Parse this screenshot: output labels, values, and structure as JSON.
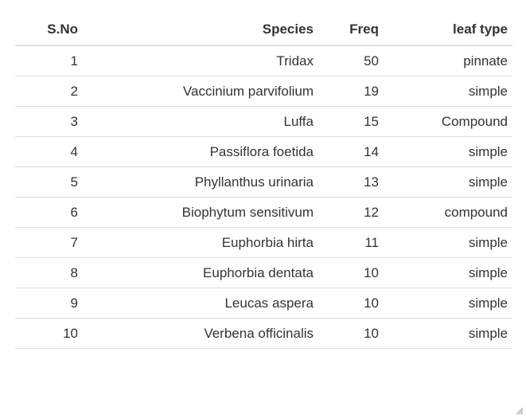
{
  "table": {
    "headers": [
      "S.No",
      "Species",
      "Freq",
      "leaf type"
    ],
    "rows": [
      [
        "1",
        "Tridax",
        "50",
        "pinnate"
      ],
      [
        "2",
        "Vaccinium parvifolium",
        "19",
        "simple"
      ],
      [
        "3",
        "Luffa",
        "15",
        "Compound"
      ],
      [
        "4",
        "Passiflora foetida",
        "14",
        "simple"
      ],
      [
        "5",
        "Phyllanthus urinaria",
        "13",
        "simple"
      ],
      [
        "6",
        "Biophytum sensitivum",
        "12",
        "compound"
      ],
      [
        "7",
        "Euphorbia hirta",
        "11",
        "simple"
      ],
      [
        "8",
        "Euphorbia dentata",
        "10",
        "simple"
      ],
      [
        "9",
        "Leucas aspera",
        "10",
        "simple"
      ],
      [
        "10",
        "Verbena officinalis",
        "10",
        "simple"
      ]
    ]
  },
  "colors": {
    "text": "#333333",
    "rule": "#dddddd"
  },
  "icons": {
    "corner": "resize-grip-icon"
  }
}
